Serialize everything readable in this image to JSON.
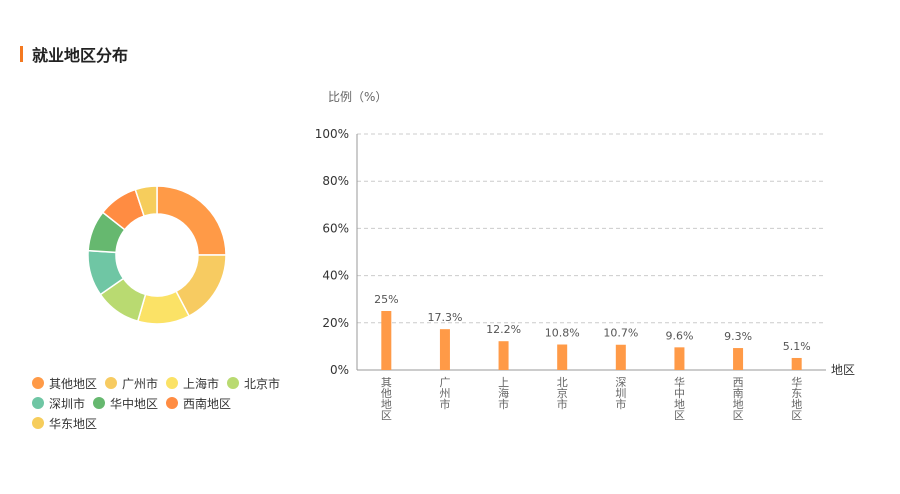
{
  "section": {
    "title": "就业地区分布"
  },
  "chart_data": [
    {
      "type": "pie",
      "variant": "donut",
      "categories": [
        "其他地区",
        "广州市",
        "上海市",
        "北京市",
        "深圳市",
        "华中地区",
        "西南地区",
        "华东地区"
      ],
      "values": [
        25,
        17.3,
        12.2,
        10.8,
        10.7,
        9.6,
        9.3,
        5.1
      ],
      "colors": [
        "#ff9a47",
        "#f7cb61",
        "#fbe266",
        "#b9da71",
        "#6fc6a4",
        "#66b86f",
        "#ff8c42",
        "#f6cd5c"
      ],
      "legend": "bottom-left"
    },
    {
      "type": "bar",
      "categories": [
        "其他地区",
        "广州市",
        "上海市",
        "北京市",
        "深圳市",
        "华中地区",
        "西南地区",
        "华东地区"
      ],
      "values": [
        25,
        17.3,
        12.2,
        10.8,
        10.7,
        9.6,
        9.3,
        5.1
      ],
      "value_labels": [
        "25%",
        "17.3%",
        "12.2%",
        "10.8%",
        "10.7%",
        "9.6%",
        "9.3%",
        "5.1%"
      ],
      "ylabel": "比例（%）",
      "xlabel": "地区",
      "ylim": [
        0,
        100
      ],
      "yticks": [
        0,
        20,
        40,
        60,
        80,
        100
      ],
      "ytick_labels": [
        "0%",
        "20%",
        "40%",
        "60%",
        "80%",
        "100%"
      ],
      "grid": true,
      "bar_color": "#ff9a47"
    }
  ]
}
